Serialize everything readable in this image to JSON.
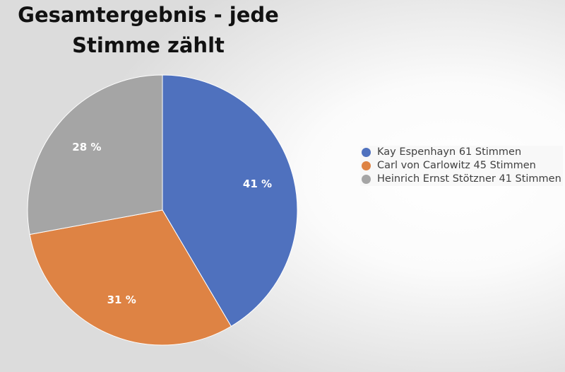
{
  "chart_data": {
    "type": "pie",
    "title_lines": [
      "Gesamtergebnis - jede",
      "Stimme zählt"
    ],
    "categories": [
      "Kay Espenhayn 61 Stimmen",
      "Carl von Carlowitz 45 Stimmen",
      "Heinrich Ernst Stötzner 41 Stimmen"
    ],
    "values": [
      61,
      45,
      41
    ],
    "data_labels": [
      "41 %",
      "31 %",
      "28 %"
    ],
    "colors": [
      "#4F71BE",
      "#DE8344",
      "#A5A5A5"
    ],
    "legend_position": "right"
  }
}
